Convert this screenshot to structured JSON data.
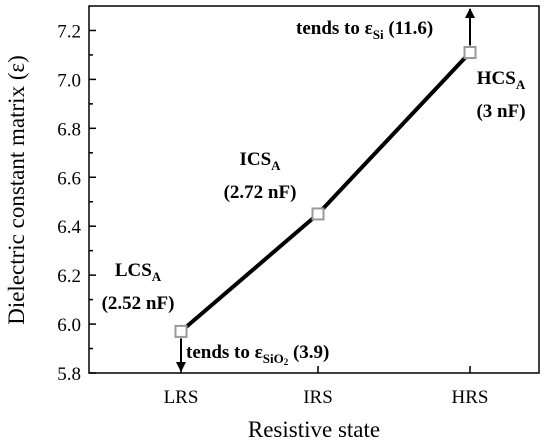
{
  "chart_data": {
    "type": "line",
    "categories": [
      "LRS",
      "IRS",
      "HRS"
    ],
    "series": [
      {
        "values": [
          5.97,
          6.45,
          7.11
        ]
      }
    ],
    "xlabel": "Resistive state",
    "ylabel": "Dielectric constant matrix (ε)",
    "ylim": [
      5.8,
      7.3
    ],
    "yticks": [
      "5.8",
      "6.0",
      "6.2",
      "6.4",
      "6.6",
      "6.8",
      "7.0",
      "7.2"
    ],
    "grid": false,
    "line_color": "#000000",
    "marker_color": "#9a9a9a",
    "points": [
      {
        "name": "LCS",
        "sub": "A",
        "cap": "(2.52 nF)"
      },
      {
        "name": "ICS",
        "sub": "A",
        "cap": "(2.72 nF)"
      },
      {
        "name": "HCS",
        "sub": "A",
        "cap": "(3 nF)"
      }
    ],
    "annotations": {
      "top": {
        "prefix": "tends to ε",
        "sub": "Si",
        "suffix": " (11.6)"
      },
      "bottom": {
        "prefix": "tends to ε",
        "sub": "SiO",
        "sub2": "2",
        "suffix": " (3.9)"
      }
    }
  }
}
